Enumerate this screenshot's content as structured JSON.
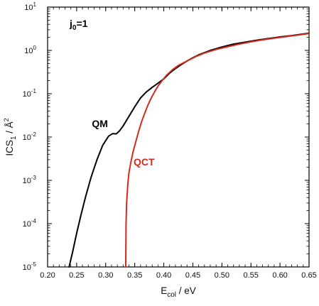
{
  "chart_data": {
    "type": "line",
    "panel_label": {
      "main": "j",
      "sub": "0",
      "rest": "=1"
    },
    "xlabel": {
      "main": "E",
      "sub": "col",
      "rest": " / eV"
    },
    "ylabel": {
      "main": "ICS",
      "sub": "1",
      "rest": "  / Å",
      "sup": "2"
    },
    "xlim": [
      0.2,
      0.65
    ],
    "ylim": [
      1e-05,
      10
    ],
    "yscale": "log",
    "x_ticks": [
      0.2,
      0.25,
      0.3,
      0.35,
      0.4,
      0.45,
      0.5,
      0.55,
      0.6,
      0.65
    ],
    "x_tick_labels": [
      "0.20",
      "0.25",
      "0.30",
      "0.35",
      "0.40",
      "0.45",
      "0.50",
      "0.55",
      "0.60",
      "0.65"
    ],
    "y_ticks": [
      -5,
      -4,
      -3,
      -2,
      -1,
      0,
      1
    ],
    "y_tick_labels": [
      {
        "base": "10",
        "exp": "-5"
      },
      {
        "base": "10",
        "exp": "-4"
      },
      {
        "base": "10",
        "exp": "-3"
      },
      {
        "base": "10",
        "exp": "-2"
      },
      {
        "base": "10",
        "exp": "-1"
      },
      {
        "base": "10",
        "exp": "0"
      },
      {
        "base": "10",
        "exp": "1"
      }
    ],
    "annotations": [
      {
        "text": "QM",
        "x": 0.29,
        "y": 0.017,
        "color": "#000000"
      },
      {
        "text": "QCT",
        "x": 0.366,
        "y": 0.0022,
        "color": "#d42a1e"
      }
    ],
    "series": [
      {
        "label": "QM",
        "color": "#000000",
        "points": [
          [
            0.237,
            1e-05
          ],
          [
            0.243,
            2.2e-05
          ],
          [
            0.25,
            6e-05
          ],
          [
            0.257,
            0.00015
          ],
          [
            0.265,
            0.0004
          ],
          [
            0.275,
            0.0012
          ],
          [
            0.285,
            0.003
          ],
          [
            0.295,
            0.0065
          ],
          [
            0.305,
            0.0105
          ],
          [
            0.312,
            0.012
          ],
          [
            0.318,
            0.0118
          ],
          [
            0.323,
            0.0135
          ],
          [
            0.33,
            0.018
          ],
          [
            0.34,
            0.03
          ],
          [
            0.35,
            0.05
          ],
          [
            0.36,
            0.08
          ],
          [
            0.37,
            0.11
          ],
          [
            0.38,
            0.14
          ],
          [
            0.39,
            0.175
          ],
          [
            0.4,
            0.22
          ],
          [
            0.41,
            0.3
          ],
          [
            0.42,
            0.38
          ],
          [
            0.43,
            0.47
          ],
          [
            0.44,
            0.57
          ],
          [
            0.45,
            0.68
          ],
          [
            0.46,
            0.79
          ],
          [
            0.48,
            1.0
          ],
          [
            0.5,
            1.2
          ],
          [
            0.52,
            1.4
          ],
          [
            0.54,
            1.55
          ],
          [
            0.56,
            1.72
          ],
          [
            0.58,
            1.88
          ],
          [
            0.6,
            2.05
          ],
          [
            0.62,
            2.2
          ],
          [
            0.65,
            2.5
          ]
        ]
      },
      {
        "label": "QCT",
        "color": "#d42a1e",
        "points": [
          [
            0.3345,
            1e-05
          ],
          [
            0.335,
            0.0001
          ],
          [
            0.336,
            0.0003
          ],
          [
            0.338,
            0.0008
          ],
          [
            0.34,
            0.0015
          ],
          [
            0.343,
            0.0025
          ],
          [
            0.347,
            0.0045
          ],
          [
            0.352,
            0.008
          ],
          [
            0.357,
            0.014
          ],
          [
            0.362,
            0.023
          ],
          [
            0.367,
            0.035
          ],
          [
            0.372,
            0.052
          ],
          [
            0.378,
            0.078
          ],
          [
            0.384,
            0.11
          ],
          [
            0.39,
            0.15
          ],
          [
            0.397,
            0.2
          ],
          [
            0.405,
            0.27
          ],
          [
            0.415,
            0.36
          ],
          [
            0.425,
            0.45
          ],
          [
            0.44,
            0.57
          ],
          [
            0.455,
            0.72
          ],
          [
            0.47,
            0.87
          ],
          [
            0.49,
            1.05
          ],
          [
            0.51,
            1.22
          ],
          [
            0.53,
            1.4
          ],
          [
            0.55,
            1.58
          ],
          [
            0.57,
            1.75
          ],
          [
            0.59,
            1.92
          ],
          [
            0.61,
            2.08
          ],
          [
            0.63,
            2.25
          ],
          [
            0.65,
            2.45
          ]
        ]
      }
    ]
  }
}
